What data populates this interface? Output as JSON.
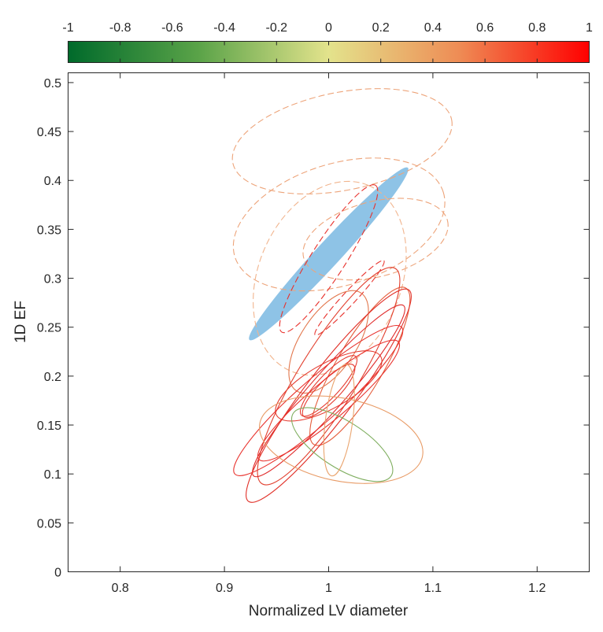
{
  "chart_data": {
    "type": "scatter",
    "subtype": "ellipses",
    "xlabel": "Normalized LV diameter",
    "ylabel": "1D EF",
    "xlim": [
      0.75,
      1.25
    ],
    "ylim": [
      0,
      0.51
    ],
    "xticks": [
      0.8,
      0.9,
      1,
      1.1,
      1.2
    ],
    "yticks": [
      0,
      0.05,
      0.1,
      0.15,
      0.2,
      0.25,
      0.3,
      0.35,
      0.4,
      0.45,
      0.5
    ],
    "xtick_labels": [
      "0.8",
      "0.9",
      "1",
      "1.1",
      "1.2"
    ],
    "ytick_labels": [
      "0",
      "0.05",
      "0.1",
      "0.15",
      "0.2",
      "0.25",
      "0.3",
      "0.35",
      "0.4",
      "0.45",
      "0.5"
    ],
    "grid": false,
    "colorbar": {
      "location": "top",
      "range": [
        -1,
        1
      ],
      "tick_labels": [
        "-1",
        "-0.8",
        "-0.6",
        "-0.4",
        "-0.2",
        "0",
        "0.2",
        "0.4",
        "0.6",
        "0.8",
        "1"
      ],
      "colormap": [
        {
          "value": -1,
          "color": "#006a2b"
        },
        {
          "value": -0.5,
          "color": "#5aa348"
        },
        {
          "value": 0,
          "color": "#e3e38c"
        },
        {
          "value": 0.5,
          "color": "#ee8c55"
        },
        {
          "value": 1,
          "color": "#ff0000"
        }
      ]
    },
    "reference_region": {
      "color": "#8ec3e6",
      "center": [
        1.0,
        0.325
      ],
      "major_tip": [
        1.076,
        0.413
      ],
      "minor_tip": [
        0.991,
        0.333
      ]
    },
    "ellipses": [
      {
        "center": [
          1.013,
          0.44
        ],
        "major_tip": [
          1.118,
          0.462
        ],
        "minor_tip": [
          1.011,
          0.49
        ],
        "style": "dashed",
        "color": "#eda47a"
      },
      {
        "center": [
          1.01,
          0.355
        ],
        "major_tip": [
          1.11,
          0.388
        ],
        "minor_tip": [
          1.006,
          0.417
        ],
        "style": "dashed",
        "color": "#eda47a"
      },
      {
        "center": [
          1.045,
          0.34
        ],
        "major_tip": [
          1.114,
          0.359
        ],
        "minor_tip": [
          1.04,
          0.378
        ],
        "style": "dashed",
        "color": "#eda47a"
      },
      {
        "center": [
          1.001,
          0.3
        ],
        "major_tip": [
          1.038,
          0.395
        ],
        "minor_tip": [
          1.069,
          0.29
        ],
        "style": "dashed",
        "color": "#f1b48d"
      },
      {
        "center": [
          1.0,
          0.32
        ],
        "major_tip": [
          1.045,
          0.395
        ],
        "minor_tip": [
          1.015,
          0.327
        ],
        "style": "dashed",
        "color": "#e8322d"
      },
      {
        "center": [
          1.02,
          0.28
        ],
        "major_tip": [
          1.053,
          0.318
        ],
        "minor_tip": [
          1.025,
          0.276
        ],
        "style": "dashed",
        "color": "#e8322d"
      },
      {
        "center": [
          1.03,
          0.21
        ],
        "major_tip": [
          1.074,
          0.29
        ],
        "minor_tip": [
          1.009,
          0.202
        ],
        "style": "solid",
        "color": "#e55f3e"
      },
      {
        "center": [
          1.0,
          0.235
        ],
        "major_tip": [
          1.031,
          0.285
        ],
        "minor_tip": [
          1.025,
          0.225
        ],
        "style": "solid",
        "color": "#e2774d"
      },
      {
        "center": [
          1.0,
          0.19
        ],
        "major_tip": [
          1.05,
          0.22
        ],
        "minor_tip": [
          1.014,
          0.207
        ],
        "style": "solid",
        "color": "#e53a2f"
      },
      {
        "center": [
          1.0,
          0.185
        ],
        "major_tip": [
          1.024,
          0.211
        ],
        "minor_tip": [
          1.008,
          0.178
        ],
        "style": "solid",
        "color": "#e53a2f"
      },
      {
        "center": [
          1.0,
          0.19
        ],
        "major_tip": [
          1.026,
          0.22
        ],
        "minor_tip": [
          1.009,
          0.184
        ],
        "style": "solid",
        "color": "#e53a2f"
      },
      {
        "center": [
          1.0,
          0.25
        ],
        "major_tip": [
          1.076,
          0.38
        ],
        "minor_tip": [
          1.0,
          0.25
        ],
        "style": "solid",
        "color": "#e53a2f",
        "note": "placeholder-skip"
      },
      {
        "center": [
          1.0,
          0.2
        ],
        "major_tip": [
          1.064,
          0.31
        ],
        "minor_tip": [
          0.972,
          0.198
        ],
        "style": "solid",
        "color": "#e2402f"
      },
      {
        "center": [
          1.0,
          0.185
        ],
        "major_tip": [
          1.072,
          0.272
        ],
        "minor_tip": [
          0.985,
          0.176
        ],
        "style": "solid",
        "color": "#e02a2a"
      },
      {
        "center": [
          1.0,
          0.18
        ],
        "major_tip": [
          1.077,
          0.288
        ],
        "minor_tip": [
          0.98,
          0.167
        ],
        "style": "solid",
        "color": "#e13028"
      },
      {
        "center": [
          0.99,
          0.175
        ],
        "major_tip": [
          1.07,
          0.25
        ],
        "minor_tip": [
          0.975,
          0.19
        ],
        "style": "solid",
        "color": "#e8322d"
      },
      {
        "center": [
          1.0,
          0.175
        ],
        "major_tip": [
          1.067,
          0.235
        ],
        "minor_tip": [
          0.986,
          0.187
        ],
        "style": "solid",
        "color": "#e8322d"
      },
      {
        "center": [
          1.012,
          0.135
        ],
        "major_tip": [
          1.09,
          0.118
        ],
        "minor_tip": [
          1.016,
          0.177
        ],
        "style": "solid",
        "color": "#e89b66"
      },
      {
        "center": [
          1.013,
          0.13
        ],
        "major_tip": [
          1.06,
          0.098
        ],
        "minor_tip": [
          1.025,
          0.15
        ],
        "style": "solid",
        "color": "#7fae5f"
      },
      {
        "center": [
          1.01,
          0.155
        ],
        "major_tip": [
          1.017,
          0.212
        ],
        "minor_tip": [
          1.023,
          0.156
        ],
        "style": "solid",
        "color": "#eaa56f"
      },
      {
        "center": [
          1.0,
          0.185
        ],
        "major_tip": [
          1.0,
          0.185
        ],
        "minor_tip": [
          1.0,
          0.185
        ],
        "style": "solid",
        "color": "#e53a2f",
        "note": "placeholder-skip"
      },
      {
        "center": [
          0.99,
          0.18
        ],
        "major_tip": [
          1.066,
          0.26
        ],
        "minor_tip": [
          0.985,
          0.185
        ],
        "style": "solid",
        "color": "#e53a2f",
        "note": "placeholder-skip"
      },
      {
        "center": [
          1.0,
          0.17
        ],
        "major_tip": [
          1.08,
          0.28
        ],
        "minor_tip": [
          0.98,
          0.165
        ],
        "style": "solid",
        "color": "#e53a2f",
        "note": "placeholder-skip"
      },
      {
        "center": [
          0.99,
          0.185
        ],
        "major_tip": [
          1.075,
          0.285
        ],
        "minor_tip": [
          0.975,
          0.18
        ],
        "style": "solid",
        "color": "#e53a2f",
        "note": "placeholder-skip"
      },
      {
        "center": [
          1.0,
          0.18
        ],
        "major_tip": [
          1.08,
          0.28
        ],
        "minor_tip": [
          0.985,
          0.175
        ],
        "style": "solid",
        "color": "#e53a2f",
        "note": "placeholder-skip"
      },
      {
        "center": [
          1.0,
          0.175
        ],
        "major_tip": [
          1.085,
          0.285
        ],
        "minor_tip": [
          0.985,
          0.17
        ],
        "style": "solid",
        "color": "#e53a2f",
        "note": "placeholder-skip"
      },
      {
        "center": [
          0.995,
          0.185
        ],
        "major_tip": [
          1.074,
          0.285
        ],
        "minor_tip": [
          0.98,
          0.18
        ],
        "style": "solid",
        "color": "#e53a2f",
        "note": "placeholder-skip"
      },
      {
        "center": [
          1.0,
          0.18
        ],
        "major_tip": [
          1.077,
          0.285
        ],
        "minor_tip": [
          0.98,
          0.175
        ],
        "style": "solid",
        "color": "#e53a2f",
        "note": "placeholder-skip"
      },
      {
        "center": [
          0.995,
          0.175
        ],
        "major_tip": [
          1.082,
          0.288
        ],
        "minor_tip": [
          0.98,
          0.17
        ],
        "style": "solid",
        "color": "#e53a2f",
        "note": "placeholder-skip"
      },
      {
        "center": [
          1.0,
          0.185
        ],
        "major_tip": [
          1.075,
          0.29
        ],
        "minor_tip": [
          0.98,
          0.18
        ],
        "style": "solid",
        "color": "#e53a2f",
        "note": "placeholder-skip"
      },
      {
        "center": [
          1.0,
          0.18
        ],
        "major_tip": [
          1.078,
          0.285
        ],
        "minor_tip": [
          0.985,
          0.175
        ],
        "style": "solid",
        "color": "#e53a2f",
        "note": "placeholder-skip"
      },
      {
        "center": [
          1.0,
          0.185
        ],
        "major_tip": [
          1.08,
          0.285
        ],
        "minor_tip": [
          0.98,
          0.18
        ],
        "style": "solid",
        "color": "#e53a2f",
        "note": "placeholder-skip"
      },
      {
        "center": [
          1.0,
          0.18
        ],
        "major_tip": [
          1.075,
          0.285
        ],
        "minor_tip": [
          0.985,
          0.175
        ],
        "style": "solid",
        "color": "#e53a2f",
        "note": "placeholder-skip"
      },
      {
        "center": [
          1.0,
          0.185
        ],
        "major_tip": [
          1.077,
          0.29
        ],
        "minor_tip": [
          0.98,
          0.18
        ],
        "style": "solid",
        "color": "#e53a2f",
        "note": "placeholder-skip"
      },
      {
        "center": [
          1.0,
          0.175
        ],
        "major_tip": [
          1.08,
          0.28
        ],
        "minor_tip": [
          0.985,
          0.17
        ],
        "style": "solid",
        "color": "#e53a2f",
        "note": "placeholder-skip"
      },
      {
        "center": [
          1.0,
          0.185
        ],
        "major_tip": [
          1.075,
          0.285
        ],
        "minor_tip": [
          0.98,
          0.18
        ],
        "style": "solid",
        "color": "#e53a2f",
        "note": "placeholder-skip"
      },
      {
        "center": [
          1.0,
          0.18
        ],
        "major_tip": [
          1.078,
          0.285
        ],
        "minor_tip": [
          0.985,
          0.175
        ],
        "style": "solid",
        "color": "#e53a2f",
        "note": "placeholder-skip"
      },
      {
        "center": [
          0.985,
          0.175
        ],
        "major_tip": [
          1.07,
          0.29
        ],
        "minor_tip": [
          0.97,
          0.17
        ],
        "style": "solid",
        "color": "#e53a2f",
        "note": "placeholder-skip"
      },
      {
        "center": [
          0.98,
          0.18
        ],
        "major_tip": [
          1.075,
          0.285
        ],
        "minor_tip": [
          0.97,
          0.175
        ],
        "style": "solid",
        "color": "#e53a2f",
        "note": "placeholder-skip"
      },
      {
        "center": [
          0.98,
          0.175
        ],
        "major_tip": [
          1.077,
          0.285
        ],
        "minor_tip": [
          0.968,
          0.17
        ],
        "style": "solid",
        "color": "#e53a2f",
        "note": "placeholder-skip"
      },
      {
        "center": [
          0.975,
          0.175
        ],
        "major_tip": [
          1.08,
          0.29
        ],
        "minor_tip": [
          0.965,
          0.17
        ],
        "style": "solid",
        "color": "#e53a2f",
        "note": "placeholder-skip"
      },
      {
        "center": [
          1.0,
          0.165
        ],
        "major_tip": [
          1.074,
          0.272
        ],
        "minor_tip": [
          0.98,
          0.16
        ],
        "style": "solid",
        "color": "#e53a2f",
        "note": "placeholder-skip"
      },
      {
        "center": [
          1.0,
          0.16
        ],
        "major_tip": [
          1.078,
          0.27
        ],
        "minor_tip": [
          0.98,
          0.155
        ],
        "style": "solid",
        "color": "#e53a2f",
        "note": "placeholder-skip"
      },
      {
        "center": [
          0.99,
          0.17
        ],
        "major_tip": [
          1.077,
          0.285
        ],
        "minor_tip": [
          0.975,
          0.165
        ],
        "style": "solid",
        "color": "#e53a2f",
        "note": "placeholder-skip"
      },
      {
        "center": [
          0.99,
          0.165
        ],
        "major_tip": [
          1.078,
          0.28
        ],
        "minor_tip": [
          0.975,
          0.16
        ],
        "style": "solid",
        "color": "#e53a2f",
        "note": "placeholder-skip"
      },
      {
        "center": [
          0.995,
          0.17
        ],
        "major_tip": [
          1.078,
          0.285
        ],
        "minor_tip": [
          0.978,
          0.165
        ],
        "style": "solid",
        "color": "#e53a2f",
        "note": "placeholder-skip"
      },
      {
        "center": [
          0.99,
          0.17
        ],
        "major_tip": [
          1.076,
          0.288
        ],
        "minor_tip": [
          0.975,
          0.165
        ],
        "style": "solid",
        "color": "#e53a2f",
        "note": "placeholder-skip"
      },
      {
        "center": [
          1.0,
          0.17
        ],
        "major_tip": [
          1.08,
          0.285
        ],
        "minor_tip": [
          0.98,
          0.165
        ],
        "style": "solid",
        "color": "#e53a2f",
        "note": "placeholder-skip"
      },
      {
        "center": [
          1.0,
          0.165
        ],
        "major_tip": [
          1.08,
          0.28
        ],
        "minor_tip": [
          0.98,
          0.16
        ],
        "style": "solid",
        "color": "#e53a2f",
        "note": "placeholder-skip"
      },
      {
        "center": [
          0.995,
          0.17
        ],
        "major_tip": [
          1.075,
          0.283
        ],
        "minor_tip": [
          0.978,
          0.165
        ],
        "style": "solid",
        "color": "#e53a2f",
        "note": "placeholder-skip"
      },
      {
        "center": [
          1.0,
          0.17
        ],
        "major_tip": [
          1.08,
          0.283
        ],
        "minor_tip": [
          0.98,
          0.165
        ],
        "style": "solid",
        "color": "#e53a2f",
        "note": "placeholder-skip"
      },
      {
        "center": [
          1.0,
          0.17
        ],
        "major_tip": [
          1.077,
          0.287
        ],
        "minor_tip": [
          0.98,
          0.165
        ],
        "style": "solid",
        "color": "#e53a2f",
        "note": "placeholder-skip"
      },
      {
        "center": [
          0.99,
          0.165
        ],
        "major_tip": [
          1.074,
          0.288
        ],
        "minor_tip": [
          0.975,
          0.16
        ],
        "style": "solid",
        "color": "#e53a2f",
        "note": "placeholder-skip"
      },
      {
        "center": [
          0.985,
          0.17
        ],
        "major_tip": [
          1.075,
          0.285
        ],
        "minor_tip": [
          0.97,
          0.165
        ],
        "style": "solid",
        "color": "#e53a2f",
        "note": "placeholder-skip"
      },
      {
        "center": [
          0.99,
          0.17
        ],
        "major_tip": [
          1.08,
          0.29
        ],
        "minor_tip": [
          0.975,
          0.165
        ],
        "style": "solid",
        "color": "#e53a2f",
        "note": "placeholder-skip"
      },
      {
        "center": [
          1.005,
          0.17
        ],
        "major_tip": [
          1.08,
          0.287
        ],
        "minor_tip": [
          0.985,
          0.165
        ],
        "style": "solid",
        "color": "#e53a2f",
        "note": "placeholder-skip"
      },
      {
        "center": [
          1.0,
          0.17
        ],
        "major_tip": [
          1.081,
          0.288
        ],
        "minor_tip": [
          0.98,
          0.165
        ],
        "style": "solid",
        "color": "#e53a2f",
        "note": "placeholder-skip"
      },
      {
        "center": [
          1.002,
          0.168
        ],
        "major_tip": [
          1.079,
          0.287
        ],
        "minor_tip": [
          0.982,
          0.163
        ],
        "style": "solid",
        "color": "#e53a2f",
        "note": "placeholder-skip"
      },
      {
        "center": [
          1.0,
          0.19
        ],
        "major_tip": [
          1.075,
          0.295
        ],
        "minor_tip": [
          0.98,
          0.185
        ],
        "style": "solid",
        "color": "#e53a2f",
        "note": "placeholder-skip"
      },
      {
        "center": [
          1.0,
          0.185
        ],
        "major_tip": [
          1.079,
          0.29
        ],
        "minor_tip": [
          0.98,
          0.18
        ],
        "style": "solid",
        "color": "#e53a2f",
        "note": "placeholder-skip"
      },
      {
        "center": [
          0.995,
          0.19
        ],
        "major_tip": [
          1.075,
          0.29
        ],
        "minor_tip": [
          0.975,
          0.185
        ],
        "style": "solid",
        "color": "#e53a2f",
        "note": "placeholder-skip"
      }
    ]
  }
}
